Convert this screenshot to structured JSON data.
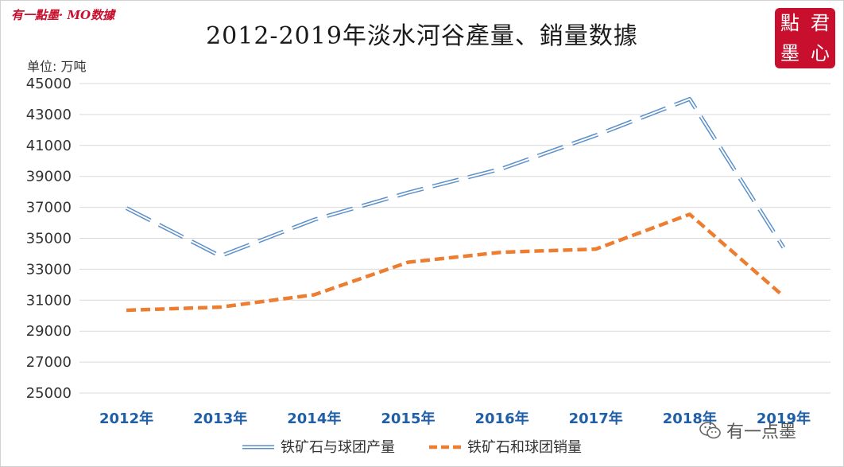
{
  "brand": "有一點墨· MO数據",
  "seal_chars": [
    "點",
    "君",
    "墨",
    "心"
  ],
  "watermark": {
    "icon": "wechat-icon",
    "text": "有一点墨"
  },
  "chart_data": {
    "type": "line",
    "title": "2012-2019年淡水河谷產量、銷量数據",
    "unit_label": "单位: 万吨",
    "categories": [
      "2012年",
      "2013年",
      "2014年",
      "2015年",
      "2016年",
      "2017年",
      "2018年",
      "2019年"
    ],
    "ylim": [
      25000,
      45000
    ],
    "yticks": [
      25000,
      27000,
      29000,
      31000,
      33000,
      35000,
      37000,
      39000,
      41000,
      43000,
      45000
    ],
    "grid": true,
    "legend_position": "bottom",
    "series": [
      {
        "name": "铁矿石与球团产量",
        "color": "#5b8fc9",
        "style": "double-dashed",
        "values": [
          36950,
          33850,
          36200,
          37950,
          39500,
          41650,
          44000,
          34400
        ]
      },
      {
        "name": "铁矿石和球团销量",
        "color": "#ed7d31",
        "style": "dashed",
        "values": [
          30350,
          30550,
          31350,
          33450,
          34100,
          34300,
          36550,
          31250
        ]
      }
    ]
  }
}
